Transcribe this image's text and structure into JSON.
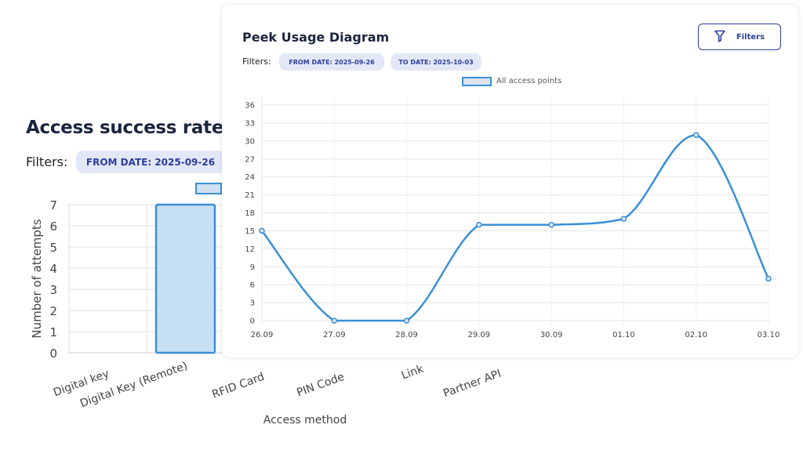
{
  "back_panel": {
    "title": "Access success rate",
    "filters_label": "Filters:",
    "from_date_chip": "FROM DATE: 2025-09-26"
  },
  "front_panel": {
    "title": "Peek Usage Diagram",
    "filters_label": "Filters:",
    "from_date_chip": "FROM DATE: 2025-09-26",
    "to_date_chip": "TO DATE: 2025-10-03",
    "filters_button": "Filters",
    "filter_icon": "filter-funnel-icon"
  },
  "colors": {
    "accent": "#2b3f9e",
    "series": "#3b8fd6",
    "bar_fill": "#c6dff3"
  },
  "chart_data": [
    {
      "type": "bar",
      "title": "Access success rate",
      "categories": [
        "Digital key",
        "Digital Key (Remote)",
        "RFID Card",
        "PIN Code",
        "Link",
        "Partner API"
      ],
      "values": [
        null,
        7,
        null,
        null,
        null,
        null
      ],
      "xlabel": "Access method",
      "ylabel": "Number of attempts",
      "ylim": [
        0,
        7
      ],
      "yticks": [
        0,
        1,
        2,
        3,
        4,
        5,
        6,
        7
      ],
      "grid": true
    },
    {
      "type": "line",
      "title": "Peek Usage Diagram",
      "x": [
        "26.09",
        "27.09",
        "28.09",
        "29.09",
        "30.09",
        "01.10",
        "02.10",
        "03.10"
      ],
      "series": [
        {
          "name": "All access points",
          "values": [
            15,
            0,
            0,
            16,
            16,
            17,
            31,
            7
          ]
        }
      ],
      "ylim": [
        0,
        36
      ],
      "yticks": [
        0,
        3,
        6,
        9,
        12,
        15,
        18,
        21,
        24,
        27,
        30,
        33,
        36
      ],
      "grid": true,
      "legend": "top-center"
    }
  ]
}
